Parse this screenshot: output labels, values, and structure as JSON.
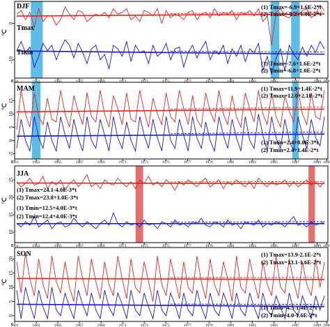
{
  "chart_data": [
    {
      "type": "line",
      "season": "DJF",
      "ylabel": "℃",
      "x_ticks": [
        "1961",
        "1963",
        "1965",
        "1967",
        "1969",
        "1971",
        "1973",
        "1975",
        "1977",
        "1979",
        "1981",
        "1983",
        "1985",
        "1987",
        "1989",
        "1990"
      ],
      "y_ticks": [
        0,
        -10
      ],
      "ylim": [
        -15,
        6
      ],
      "series_labels": [
        "Tmax",
        "Tmin"
      ],
      "highlight_years": [
        [
          1962.5,
          1963.6
        ],
        [
          1984.7,
          1985.5
        ],
        [
          1986.6,
          1987.4
        ]
      ],
      "highlight_color": "#3fb1e3",
      "equations": [
        "(1) Tmax=-6.9+1.6E-2*t",
        "(2) Tmax=-0.2+1.0E-2*t",
        "(1) Tmin=-7.6+1.6E-2*t",
        "(2) Tmin=-6.8+1.0E-2*t"
      ],
      "series": [
        {
          "color": "#e8231f",
          "values": [
            2.5,
            3.5,
            1.0,
            3.0,
            -1.0,
            4.0,
            0.5,
            2.0,
            2.0,
            -0.5,
            1.0,
            4.5,
            2.5,
            1.0,
            3.5,
            3.0,
            0.5,
            1.5,
            2.5,
            2.0,
            3.0,
            1.5,
            4.0,
            2.5,
            3.0,
            4.0,
            1.0,
            2.0,
            0.5,
            3.5,
            3.0,
            2.0,
            4.0,
            0.0,
            3.5,
            1.5,
            2.5,
            2.0,
            1.0,
            3.0,
            3.5,
            1.0,
            2.5,
            3.0,
            1.5,
            4.0,
            2.0,
            3.0,
            2.5,
            3.5,
            1.0,
            3.0,
            2.5,
            3.5,
            2.0,
            4.0,
            0.5,
            2.0,
            -6.0,
            3.0,
            4.0,
            2.0,
            1.5,
            3.0,
            2.0,
            3.5,
            4.0,
            1.5,
            2.5,
            5.0,
            3.5
          ]
        },
        {
          "color": "#1414d4",
          "values": [
            -7.5,
            -5.0,
            -8.0,
            -6.5,
            -12.0,
            -9.0,
            -5.5,
            -7.5,
            -6.0,
            -10.0,
            -7.0,
            -4.5,
            -6.0,
            -9.5,
            -5.5,
            -8.0,
            -11.0,
            -7.0,
            -6.0,
            -10.0,
            -8.5,
            -12.5,
            -6.0,
            -7.0,
            -9.0,
            -5.0,
            -10.5,
            -6.0,
            -8.0,
            -7.5,
            -11.0,
            -6.0,
            -9.0,
            -8.0,
            -5.5,
            -10.0,
            -7.0,
            -6.5,
            -12.0,
            -8.0,
            -6.0,
            -9.5,
            -7.0,
            -5.0,
            -10.0,
            -7.5,
            -8.5,
            -6.0,
            -11.0,
            -7.0,
            -9.0,
            -6.0,
            -10.5,
            -7.0,
            -8.0,
            -5.5,
            -13.0,
            -9.0,
            -14.0,
            -9.5,
            -7.0,
            -13.0,
            -6.0,
            -8.5,
            -10.0,
            -6.5,
            -9.0,
            -6.0,
            -8.0,
            -5.0,
            -7.0
          ]
        }
      ]
    },
    {
      "type": "line",
      "season": "MAM",
      "ylabel": "℃",
      "x_ticks": [
        "1961",
        "1963",
        "1965",
        "1967",
        "1969",
        "1971",
        "1973",
        "1975",
        "1977",
        "1979",
        "1981",
        "1983",
        "1985",
        "1987",
        "1989",
        "1990"
      ],
      "y_ticks": [
        15,
        10,
        5,
        0,
        -5
      ],
      "ylim": [
        -7,
        22
      ],
      "highlight_years": [
        [
          1962.6,
          1963.4
        ],
        [
          1986.7,
          1987.3
        ]
      ],
      "highlight_color": "#3fb1e3",
      "equations": [
        "(1) Tmax=11.9+1.4E-2*t",
        "(2) Tmax=12.0+2.1E-2*t",
        "(1) Tmin=2.4+8.0E-3*t",
        "(2) Tmin=2.4+1.4E-2*t"
      ],
      "series": [
        {
          "color": "#e8231f",
          "values": [
            4,
            19,
            10,
            5,
            18,
            9,
            6,
            16,
            8,
            7,
            19,
            10,
            5,
            17,
            11,
            6,
            18,
            9,
            7,
            19,
            10,
            5,
            17,
            12,
            6,
            18,
            8,
            7,
            19,
            11,
            5,
            16,
            10,
            6,
            18,
            9,
            7,
            19,
            12,
            6,
            17,
            8,
            5,
            18,
            11,
            7,
            19,
            10,
            6,
            17,
            9,
            5,
            18,
            12,
            7,
            19,
            10,
            6,
            18,
            9,
            5,
            17,
            11,
            7,
            19,
            10,
            6,
            18,
            9,
            8,
            19
          ]
        },
        {
          "color": "#1414d4",
          "values": [
            -3,
            8,
            0,
            -4,
            9,
            1,
            -3,
            7,
            0,
            -4,
            9,
            2,
            -3,
            8,
            1,
            -4,
            9,
            0,
            -3,
            8,
            2,
            -4,
            9,
            1,
            -3,
            7,
            0,
            -4,
            9,
            2,
            -3,
            8,
            1,
            -4,
            9,
            0,
            -3,
            8,
            2,
            -4,
            9,
            1,
            -3,
            7,
            0,
            -4,
            9,
            2,
            -3,
            8,
            1,
            -4,
            9,
            0,
            -3,
            10,
            2,
            -4,
            9,
            1,
            -3,
            8,
            0,
            -4,
            9,
            2,
            -3,
            8,
            1,
            -2,
            9
          ]
        }
      ]
    },
    {
      "type": "line",
      "season": "JJA",
      "ylabel": "℃",
      "x_ticks": [
        "1961",
        "1963",
        "1965",
        "1967",
        "1969",
        "1971",
        "1973",
        "1975",
        "1977",
        "1979",
        "1981",
        "1983",
        "1985",
        "1987",
        "1989",
        "1990"
      ],
      "y_ticks": [
        25,
        20,
        15,
        10
      ],
      "ylim": [
        7,
        29
      ],
      "highlight_years": [
        [
          1972.2,
          1972.9
        ],
        [
          1988.2,
          1988.8
        ]
      ],
      "highlight_color": "#e05555",
      "equations": [
        "(1) Tmax=24.1-4.0E-3*t",
        "(2) Tmax=23.8+1.0E-3*t",
        "(1) Tmin=12.5+4.0E-3*t",
        "(2) Tmin=12.4+4.0E-3*t"
      ],
      "series": [
        {
          "color": "#e8231f",
          "values": [
            24.5,
            23.0,
            24.0,
            25.5,
            23.5,
            24.0,
            26.0,
            22.5,
            24.5,
            23.5,
            25.0,
            22.0,
            24.0,
            25.0,
            23.0,
            24.5,
            26.5,
            23.0,
            24.0,
            22.5,
            25.0,
            24.0,
            23.5,
            25.5,
            24.0,
            23.0,
            24.5,
            22.5,
            25.0,
            24.0,
            26.0,
            23.5,
            24.5,
            23.0,
            25.0,
            24.0,
            22.0,
            24.5,
            23.5,
            25.0,
            24.0,
            23.0,
            24.5,
            25.5,
            23.0,
            24.0,
            25.0,
            22.5,
            24.5,
            23.5,
            25.0,
            24.0,
            23.0,
            24.5,
            22.5,
            25.5,
            24.0,
            23.0,
            24.5,
            23.5,
            24.0,
            25.0,
            23.0,
            24.5,
            23.0,
            24.0,
            25.0,
            23.5,
            24.5,
            23.0,
            24.5
          ]
        },
        {
          "color": "#1414d4",
          "values": [
            12.5,
            11.5,
            13.0,
            12.0,
            14.5,
            11.5,
            12.5,
            13.5,
            11.0,
            12.5,
            13.0,
            11.5,
            12.0,
            14.0,
            12.5,
            11.5,
            13.0,
            12.0,
            11.0,
            12.5,
            13.5,
            12.0,
            15.5,
            12.5,
            11.5,
            13.0,
            12.0,
            12.5,
            11.5,
            13.5,
            12.0,
            12.5,
            11.0,
            13.0,
            12.5,
            11.5,
            13.5,
            12.0,
            12.5,
            11.5,
            13.0,
            12.5,
            14.0,
            12.0,
            11.5,
            13.0,
            12.5,
            11.5,
            13.5,
            12.0,
            12.5,
            11.0,
            13.0,
            12.5,
            12.0,
            13.5,
            11.5,
            12.5,
            12.0,
            13.0,
            12.5,
            11.5,
            13.0,
            14.5,
            12.0,
            12.5,
            11.5,
            13.0,
            12.0,
            12.5,
            13.0
          ]
        }
      ]
    },
    {
      "type": "line",
      "season": "SON",
      "ylabel": "℃",
      "x_ticks": [
        "1961",
        "1963",
        "1965",
        "1967",
        "1969",
        "1971",
        "1973",
        "1975",
        "1977",
        "1979",
        "1981",
        "1983",
        "1985",
        "1987",
        "1989",
        "1990"
      ],
      "y_ticks": [
        20,
        15,
        10,
        5,
        0
      ],
      "ylim": [
        -2,
        24
      ],
      "highlight_years": [],
      "equations": [
        "(1) Tmax=13.9-2.1E-2*t",
        "(2) Tmax=13.1-1.6E-2*t",
        "(1) Tmin=4.5-1.4E-2*t",
        "(2) Tmin=4.0-1.6E-2*t"
      ],
      "series": [
        {
          "color": "#e8231f",
          "values": [
            19,
            8,
            22,
            13,
            7,
            20,
            11,
            6,
            21,
            12,
            8,
            19,
            10,
            5,
            21,
            13,
            7,
            20,
            12,
            6,
            19,
            11,
            7,
            21,
            13,
            6,
            20,
            10,
            8,
            19,
            12,
            5,
            21,
            11,
            7,
            20,
            13,
            6,
            19,
            10,
            8,
            21,
            12,
            6,
            20,
            11,
            7,
            19,
            13,
            5,
            21,
            10,
            8,
            20,
            12,
            6,
            19,
            11,
            7,
            21,
            10,
            8,
            20,
            12,
            6,
            19,
            11,
            7,
            20,
            10,
            19
          ]
        },
        {
          "color": "#1414d4",
          "values": [
            9,
            -1,
            10,
            4,
            -1,
            9,
            3,
            -1,
            10,
            2,
            0,
            8,
            3,
            -1,
            9,
            4,
            0,
            8,
            2,
            -1,
            9,
            3,
            0,
            8,
            4,
            -1,
            9,
            2,
            0,
            8,
            3,
            -1,
            9,
            2,
            0,
            8,
            4,
            -1,
            8,
            2,
            0,
            9,
            3,
            -1,
            8,
            2,
            0,
            8,
            4,
            -1,
            8,
            2,
            0,
            8,
            3,
            -1,
            8,
            2,
            0,
            7,
            3,
            -1,
            8,
            2,
            0,
            7,
            3,
            -1,
            7,
            2,
            7
          ]
        }
      ]
    }
  ]
}
